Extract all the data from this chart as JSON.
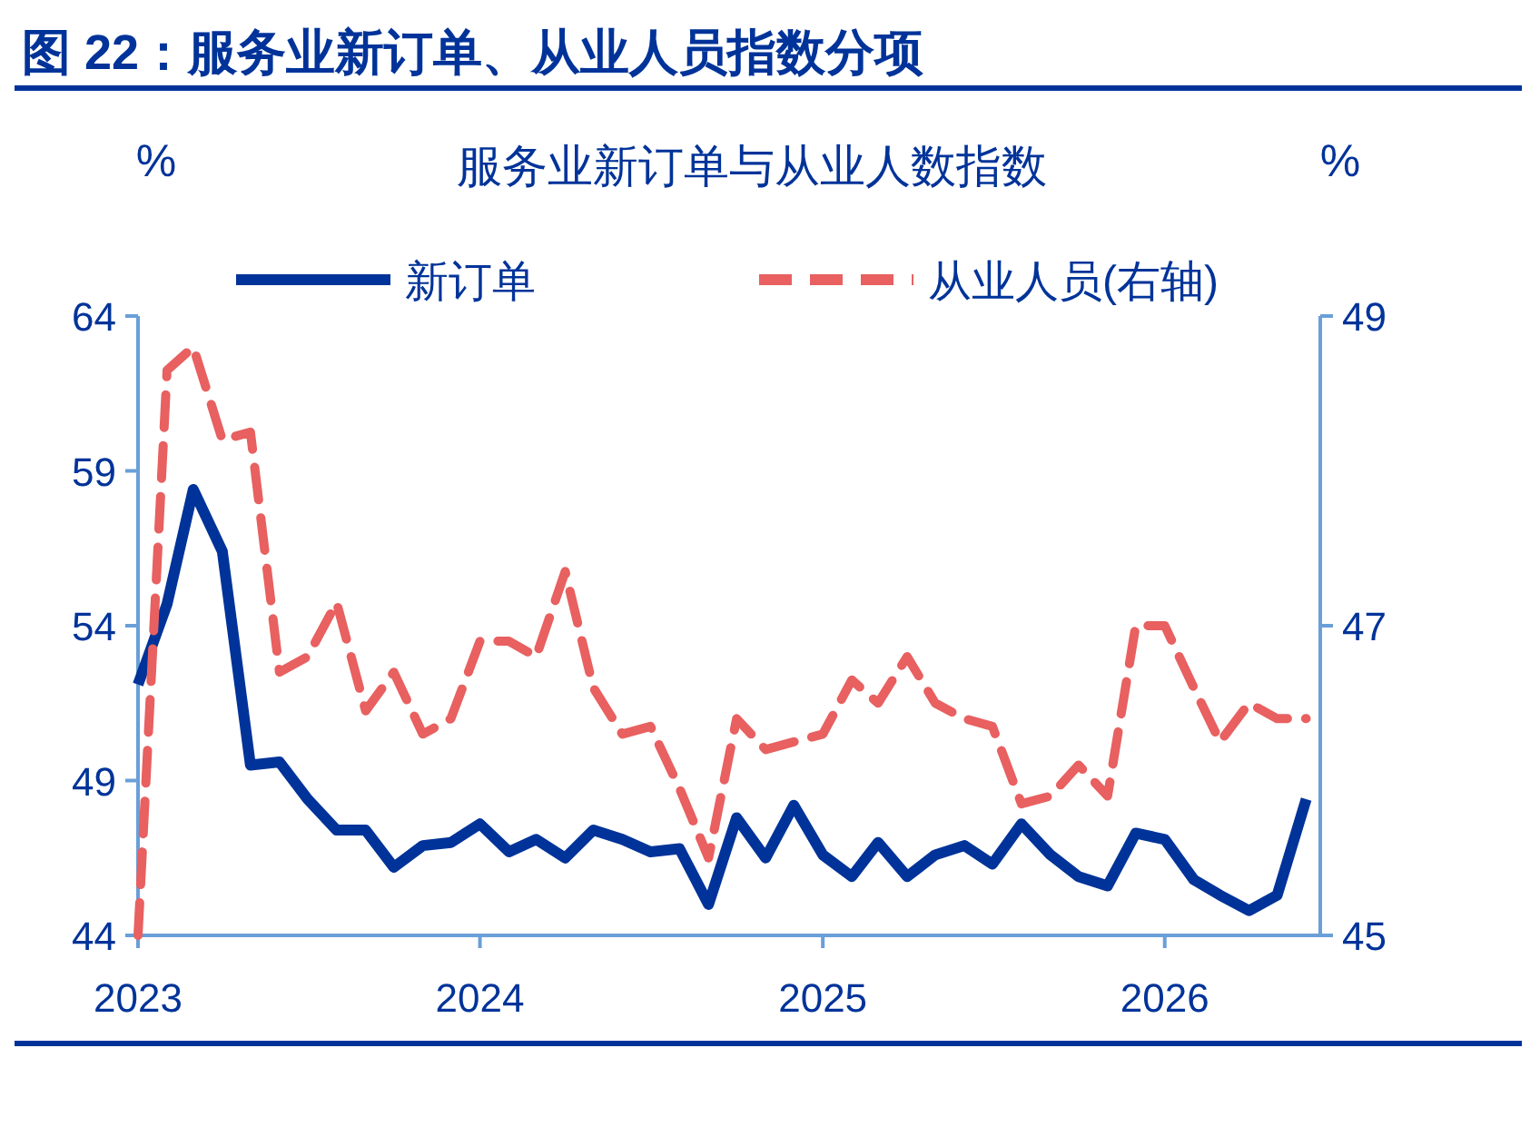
{
  "chart_data": {
    "type": "line",
    "title": "图 22：服务业新订单、从业人员指数分项",
    "subtitle": "服务业新订单与从业人数指数",
    "ylabel": "%",
    "y2label": "%",
    "x": [
      "2023-01",
      "2023-02",
      "2023-03",
      "2023-04",
      "2023-05",
      "2023-06",
      "2023-07",
      "2023-08",
      "2023-09",
      "2023-10",
      "2023-11",
      "2023-12",
      "2024-01",
      "2024-02",
      "2024-03",
      "2024-04",
      "2024-05",
      "2024-06",
      "2024-07",
      "2024-08",
      "2024-09",
      "2024-10",
      "2024-11",
      "2024-12",
      "2025-01",
      "2025-02",
      "2025-03",
      "2025-04",
      "2025-05",
      "2025-06",
      "2025-07",
      "2025-08",
      "2025-09",
      "2025-10",
      "2025-11",
      "2025-12",
      "2026-01",
      "2026-02",
      "2026-03",
      "2026-04",
      "2026-05",
      "2026-06"
    ],
    "xlim": [
      "2023-01",
      "2026-06-16"
    ],
    "xticks": [
      "2023",
      "2024",
      "2025",
      "2026"
    ],
    "ylim": [
      44,
      64
    ],
    "yticks": [
      44,
      49,
      54,
      59,
      64
    ],
    "y2lim": [
      45,
      49
    ],
    "y2ticks": [
      45,
      47,
      49
    ],
    "legend": "top",
    "line_style": "solid",
    "series": [
      {
        "name": "新订单",
        "color": "#003399",
        "values": [
          52.1,
          54.7,
          58.4,
          56.4,
          49.5,
          49.6,
          48.4,
          47.4,
          47.4,
          46.2,
          46.9,
          47.0,
          47.6,
          46.7,
          47.1,
          46.5,
          47.4,
          47.1,
          46.7,
          46.8,
          45.0,
          47.8,
          46.5,
          48.2,
          46.6,
          45.9,
          47.0,
          45.9,
          46.6,
          46.9,
          46.3,
          47.6,
          46.6,
          45.9,
          45.6,
          47.3,
          47.1,
          45.8,
          45.3,
          44.8,
          45.3,
          48.4
        ]
      },
      {
        "name": "从业人员(右轴)",
        "color": "#e86060",
        "axis": "y2",
        "line_style": "dashed",
        "values": [
          45.0,
          48.65,
          48.8,
          48.2,
          48.25,
          46.7,
          46.8,
          47.15,
          46.45,
          46.7,
          46.3,
          46.4,
          46.9,
          46.9,
          46.8,
          47.35,
          46.6,
          46.3,
          46.35,
          45.95,
          45.5,
          46.4,
          46.2,
          46.25,
          46.3,
          46.65,
          46.5,
          46.8,
          46.5,
          46.4,
          46.35,
          45.85,
          45.9,
          46.1,
          45.9,
          47.0,
          47.0,
          46.6,
          46.25,
          46.5,
          46.4,
          46.4
        ]
      }
    ]
  }
}
